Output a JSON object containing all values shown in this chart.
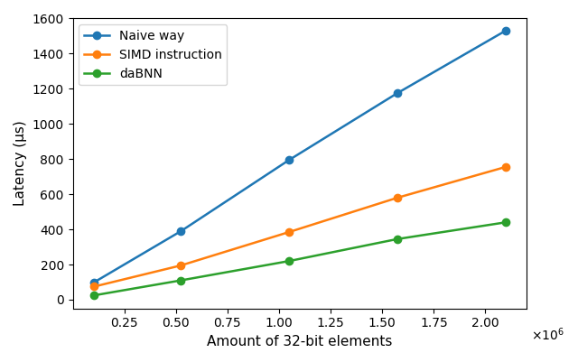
{
  "x": [
    104857.6,
    524288,
    1048576,
    1572864,
    2097152
  ],
  "naive_way": [
    100,
    390,
    795,
    1175,
    1530
  ],
  "simd_instruction": [
    75,
    195,
    385,
    580,
    755
  ],
  "dabnn": [
    25,
    110,
    220,
    345,
    440
  ],
  "naive_color": "#1f77b4",
  "simd_color": "#ff7f0e",
  "dabnn_color": "#2ca02c",
  "marker": "o",
  "linewidth": 1.8,
  "markersize": 6,
  "xlabel": "Amount of 32-bit elements",
  "ylabel": "Latency (μs)",
  "ylim": [
    -50,
    1600
  ],
  "xlim_min": 0,
  "xlim_max": 2200000,
  "legend_labels": [
    "Naive way",
    "SIMD instruction",
    "daBNN"
  ],
  "xtick_vals": [
    250000,
    500000,
    750000,
    1000000,
    1250000,
    1500000,
    1750000,
    2000000
  ],
  "xtick_labels": [
    "0.25",
    "0.50",
    "0.75",
    "1.00",
    "1.25",
    "1.50",
    "1.75",
    "2.00"
  ],
  "ytick_vals": [
    0,
    200,
    400,
    600,
    800,
    1000,
    1200,
    1400,
    1600
  ],
  "figsize": [
    6.4,
    4.01
  ],
  "dpi": 100
}
